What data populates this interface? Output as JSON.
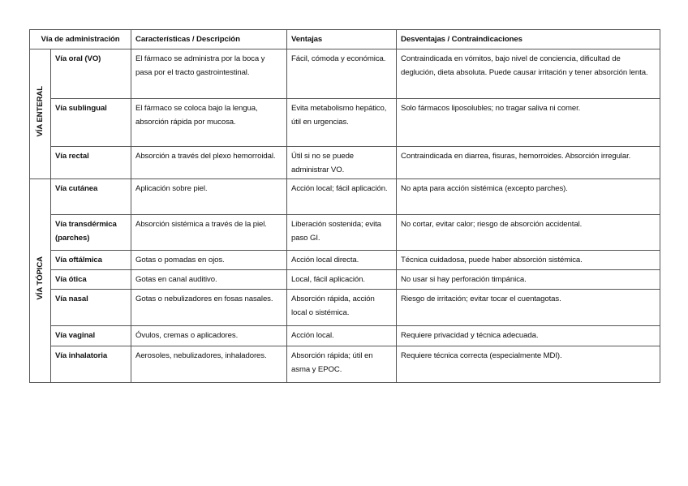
{
  "headers": {
    "route": "Vía de administración",
    "description": "Características / Descripción",
    "advantages": "Ventajas",
    "disadvantages": "Desventajas / Contraindicaciones"
  },
  "groups": [
    {
      "label": "VÍA ENTERAL",
      "rows": [
        {
          "route": "Vía oral (VO)",
          "description": "El fármaco se administra por la boca y pasa por el tracto gastrointestinal.",
          "advantages": "Fácil, cómoda y económica.",
          "disadvantages": "Contraindicada en vómitos, bajo nivel de conciencia, dificultad de deglución, dieta absoluta. Puede causar irritación y tener absorción lenta."
        },
        {
          "route": "Vía sublingual",
          "description": "El fármaco se coloca bajo la lengua, absorción rápida por mucosa.",
          "advantages": "Evita metabolismo hepático, útil en urgencias.",
          "disadvantages": "Solo fármacos liposolubles; no tragar saliva ni comer."
        },
        {
          "route": "Vía rectal",
          "description": "Absorción a través del plexo hemorroidal.",
          "advantages": "Útil si no se puede administrar VO.",
          "disadvantages": "Contraindicada en diarrea, fisuras, hemorroides. Absorción irregular."
        }
      ]
    },
    {
      "label": "VÍA TÓPICA",
      "rows": [
        {
          "route": "Vía cutánea",
          "description": "Aplicación sobre piel.",
          "advantages": "Acción local; fácil aplicación.",
          "disadvantages": "No apta para acción sistémica (excepto parches)."
        },
        {
          "route": "Vía transdérmica (parches)",
          "description": "Absorción sistémica a través de la piel.",
          "advantages": "Liberación sostenida; evita paso GI.",
          "disadvantages": "No cortar, evitar calor; riesgo de absorción accidental."
        },
        {
          "route": "Vía oftálmica",
          "description": "Gotas o pomadas en ojos.",
          "advantages": "Acción local directa.",
          "disadvantages": "Técnica cuidadosa, puede haber absorción sistémica."
        },
        {
          "route": "Vía ótica",
          "description": "Gotas en canal auditivo.",
          "advantages": "Local, fácil aplicación.",
          "disadvantages": "No usar si hay perforación timpánica."
        },
        {
          "route": "Vía nasal",
          "description": "Gotas o nebulizadores en fosas nasales.",
          "advantages": "Absorción rápida, acción local o sistémica.",
          "disadvantages": "Riesgo de irritación; evitar tocar el cuentagotas."
        },
        {
          "route": "Vía vaginal",
          "description": "Óvulos, cremas o aplicadores.",
          "advantages": "Acción local.",
          "disadvantages": "Requiere privacidad y técnica adecuada."
        },
        {
          "route": "Vía inhalatoria",
          "description": "Aerosoles, nebulizadores, inhaladores.",
          "advantages": "Absorción rápida; útil en asma y EPOC.",
          "disadvantages": "Requiere técnica correcta (especialmente MDI)."
        }
      ]
    }
  ]
}
